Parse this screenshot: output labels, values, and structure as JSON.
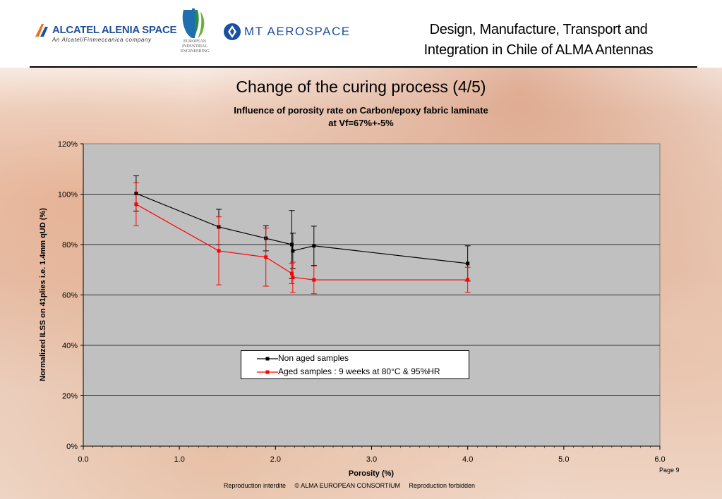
{
  "header": {
    "alcatel_name": "ALCATEL ALENIA SPACE",
    "alcatel_tagline": "An Alcatel/Finmeccanica company",
    "eie_line1": "EUROPEAN",
    "eie_line2": "INDUSTRIAL",
    "eie_line3": "ENGINEERING",
    "mt_name": "MT AEROSPACE",
    "title_line1": "Design, Manufacture, Transport and",
    "title_line2": "Integration in Chile of ALMA Antennas"
  },
  "slide_title": "Change of the curing process (4/5)",
  "chart_data": {
    "type": "scatter",
    "title_line1": "Influence of porosity rate on Carbon/epoxy fabric laminate",
    "title_line2": "at Vf=67%+-5%",
    "xlabel": "Porosity (%)",
    "ylabel": "Normalized ILSS on 41plies i.e. 1.4mm qUD (%)",
    "xlim": [
      0,
      6
    ],
    "ylim": [
      0,
      120
    ],
    "x_ticks": [
      "0.0",
      "1.0",
      "2.0",
      "3.0",
      "4.0",
      "5.0",
      "6.0"
    ],
    "y_ticks": [
      "0%",
      "20%",
      "40%",
      "60%",
      "80%",
      "100%",
      "120%"
    ],
    "grid": "horizontal",
    "legend_position": "bottom-center",
    "plot_background": "#c0c0c0",
    "series": [
      {
        "name": "Non aged samples",
        "color": "#000000",
        "points": [
          {
            "x": 0.55,
            "y": 100.3,
            "err": 7
          },
          {
            "x": 1.41,
            "y": 87.0,
            "err": 7
          },
          {
            "x": 1.9,
            "y": 82.5,
            "err": 5
          },
          {
            "x": 2.17,
            "y": 80.0,
            "err": 13.5
          },
          {
            "x": 2.18,
            "y": 77.5,
            "err": 7
          },
          {
            "x": 2.4,
            "y": 79.5,
            "err": 7.8
          },
          {
            "x": 4.0,
            "y": 72.5,
            "err": 7
          }
        ]
      },
      {
        "name": "Aged samples : 9 weeks at 80°C & 95%HR",
        "color": "#ff0000",
        "points": [
          {
            "x": 0.55,
            "y": 96.0,
            "err": 8.5
          },
          {
            "x": 1.41,
            "y": 77.5,
            "err": 13.5
          },
          {
            "x": 1.9,
            "y": 75.0,
            "err": 11.5
          },
          {
            "x": 2.17,
            "y": 68.5,
            "err": 4
          },
          {
            "x": 2.18,
            "y": 67.0,
            "err": 6
          },
          {
            "x": 2.4,
            "y": 66.0,
            "err": 5.5
          },
          {
            "x": 4.0,
            "y": 66.0,
            "err": 5
          }
        ]
      }
    ]
  },
  "page_number": "Page 9",
  "footer": {
    "left": "Reproduction interdite",
    "center": "© ALMA EUROPEAN CONSORTIUM",
    "right": "Reproduction forbidden"
  },
  "colors": {
    "alcatel_blue": "#1f4f9a",
    "mt_blue": "#1b4fa0",
    "alcatel_orange": "#e8731c"
  }
}
